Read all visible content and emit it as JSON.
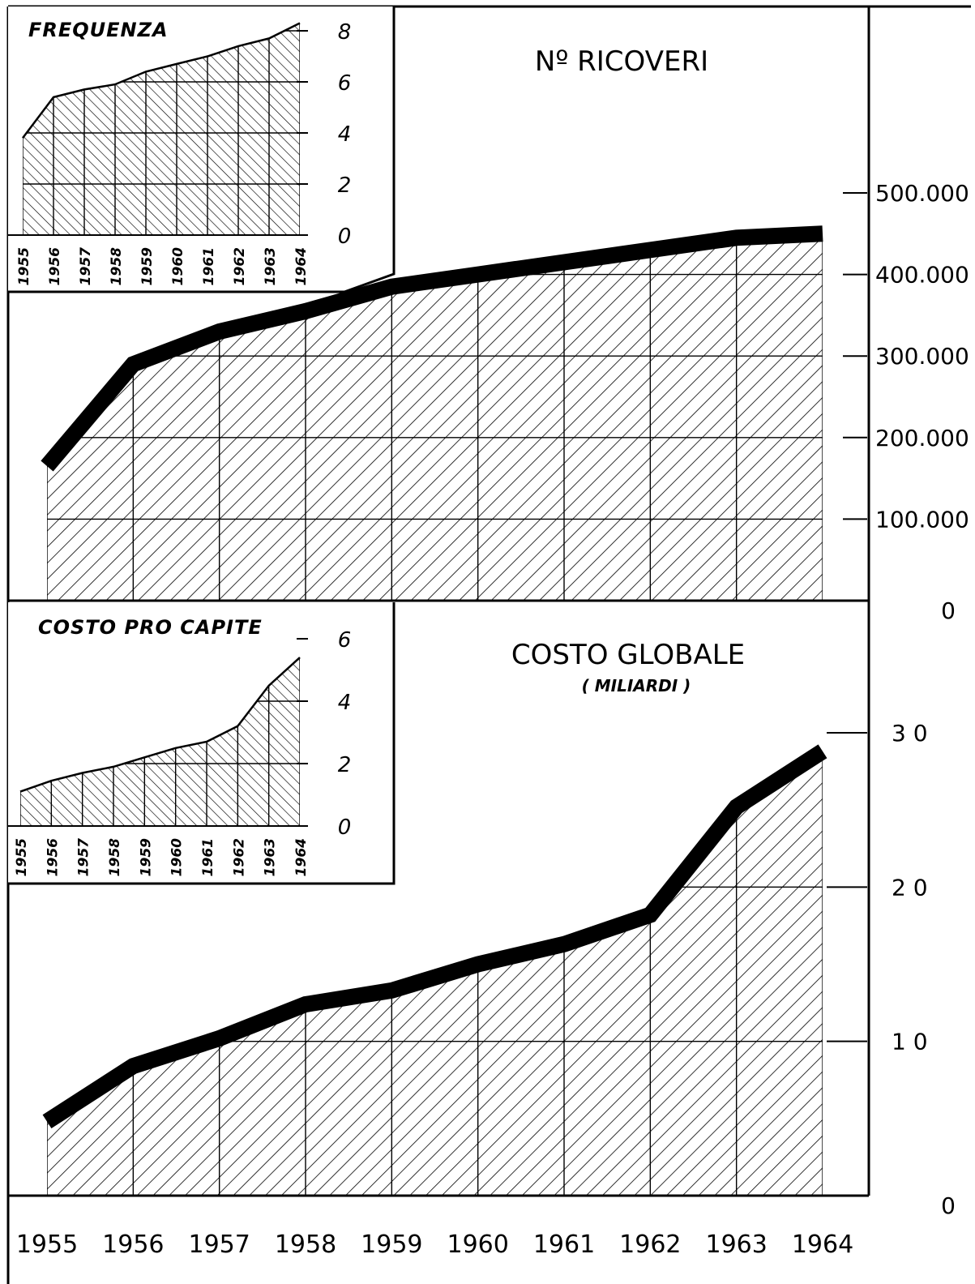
{
  "chart_data": [
    {
      "id": "ricoveri",
      "type": "area",
      "title": "Nº RICOVERI",
      "x": [
        1955,
        1956,
        1957,
        1958,
        1959,
        1960,
        1961,
        1962,
        1963,
        1964
      ],
      "values": [
        165000,
        290000,
        330000,
        355000,
        385000,
        400000,
        415000,
        430000,
        445000,
        450000
      ],
      "ylim": [
        0,
        500000
      ],
      "yticks": [
        "0",
        "100.000",
        "200.000",
        "300.000",
        "400.000",
        "500.000"
      ],
      "grid": true
    },
    {
      "id": "frequenza",
      "type": "area",
      "title": "FREQUENZA",
      "x": [
        1955,
        1956,
        1957,
        1958,
        1959,
        1960,
        1961,
        1962,
        1963,
        1964
      ],
      "values": [
        3.8,
        5.4,
        5.7,
        5.9,
        6.4,
        6.7,
        7.0,
        7.4,
        7.7,
        8.3
      ],
      "ylim": [
        0,
        8
      ],
      "yticks": [
        "0",
        "2",
        "4",
        "6",
        "8"
      ],
      "grid": true
    },
    {
      "id": "costo_globale",
      "type": "area",
      "title": "COSTO GLOBALE",
      "subtitle": "( MILIARDI )",
      "x": [
        1955,
        1956,
        1957,
        1958,
        1959,
        1960,
        1961,
        1962,
        1963,
        1964
      ],
      "values": [
        4.8,
        8.4,
        10.2,
        12.4,
        13.3,
        15.0,
        16.3,
        18.2,
        25.2,
        28.8
      ],
      "ylim": [
        0,
        30
      ],
      "yticks": [
        "0",
        "1 0",
        "2 0",
        "3 0"
      ],
      "grid": true
    },
    {
      "id": "costo_pro_capite",
      "type": "area",
      "title": "COSTO PRO CAPITE",
      "x": [
        1955,
        1956,
        1957,
        1958,
        1959,
        1960,
        1961,
        1962,
        1963,
        1964
      ],
      "values": [
        1.1,
        1.45,
        1.7,
        1.9,
        2.2,
        2.5,
        2.7,
        3.2,
        4.5,
        5.4
      ],
      "ylim": [
        0,
        6
      ],
      "yticks": [
        "0",
        "2",
        "4",
        "6"
      ],
      "grid": true
    }
  ],
  "x_axis": {
    "labels": [
      "1955",
      "1956",
      "1957",
      "1958",
      "1959",
      "1960",
      "1961",
      "1962",
      "1963",
      "1964"
    ]
  },
  "colors": {
    "ink": "#000000",
    "paper": "#ffffff"
  }
}
